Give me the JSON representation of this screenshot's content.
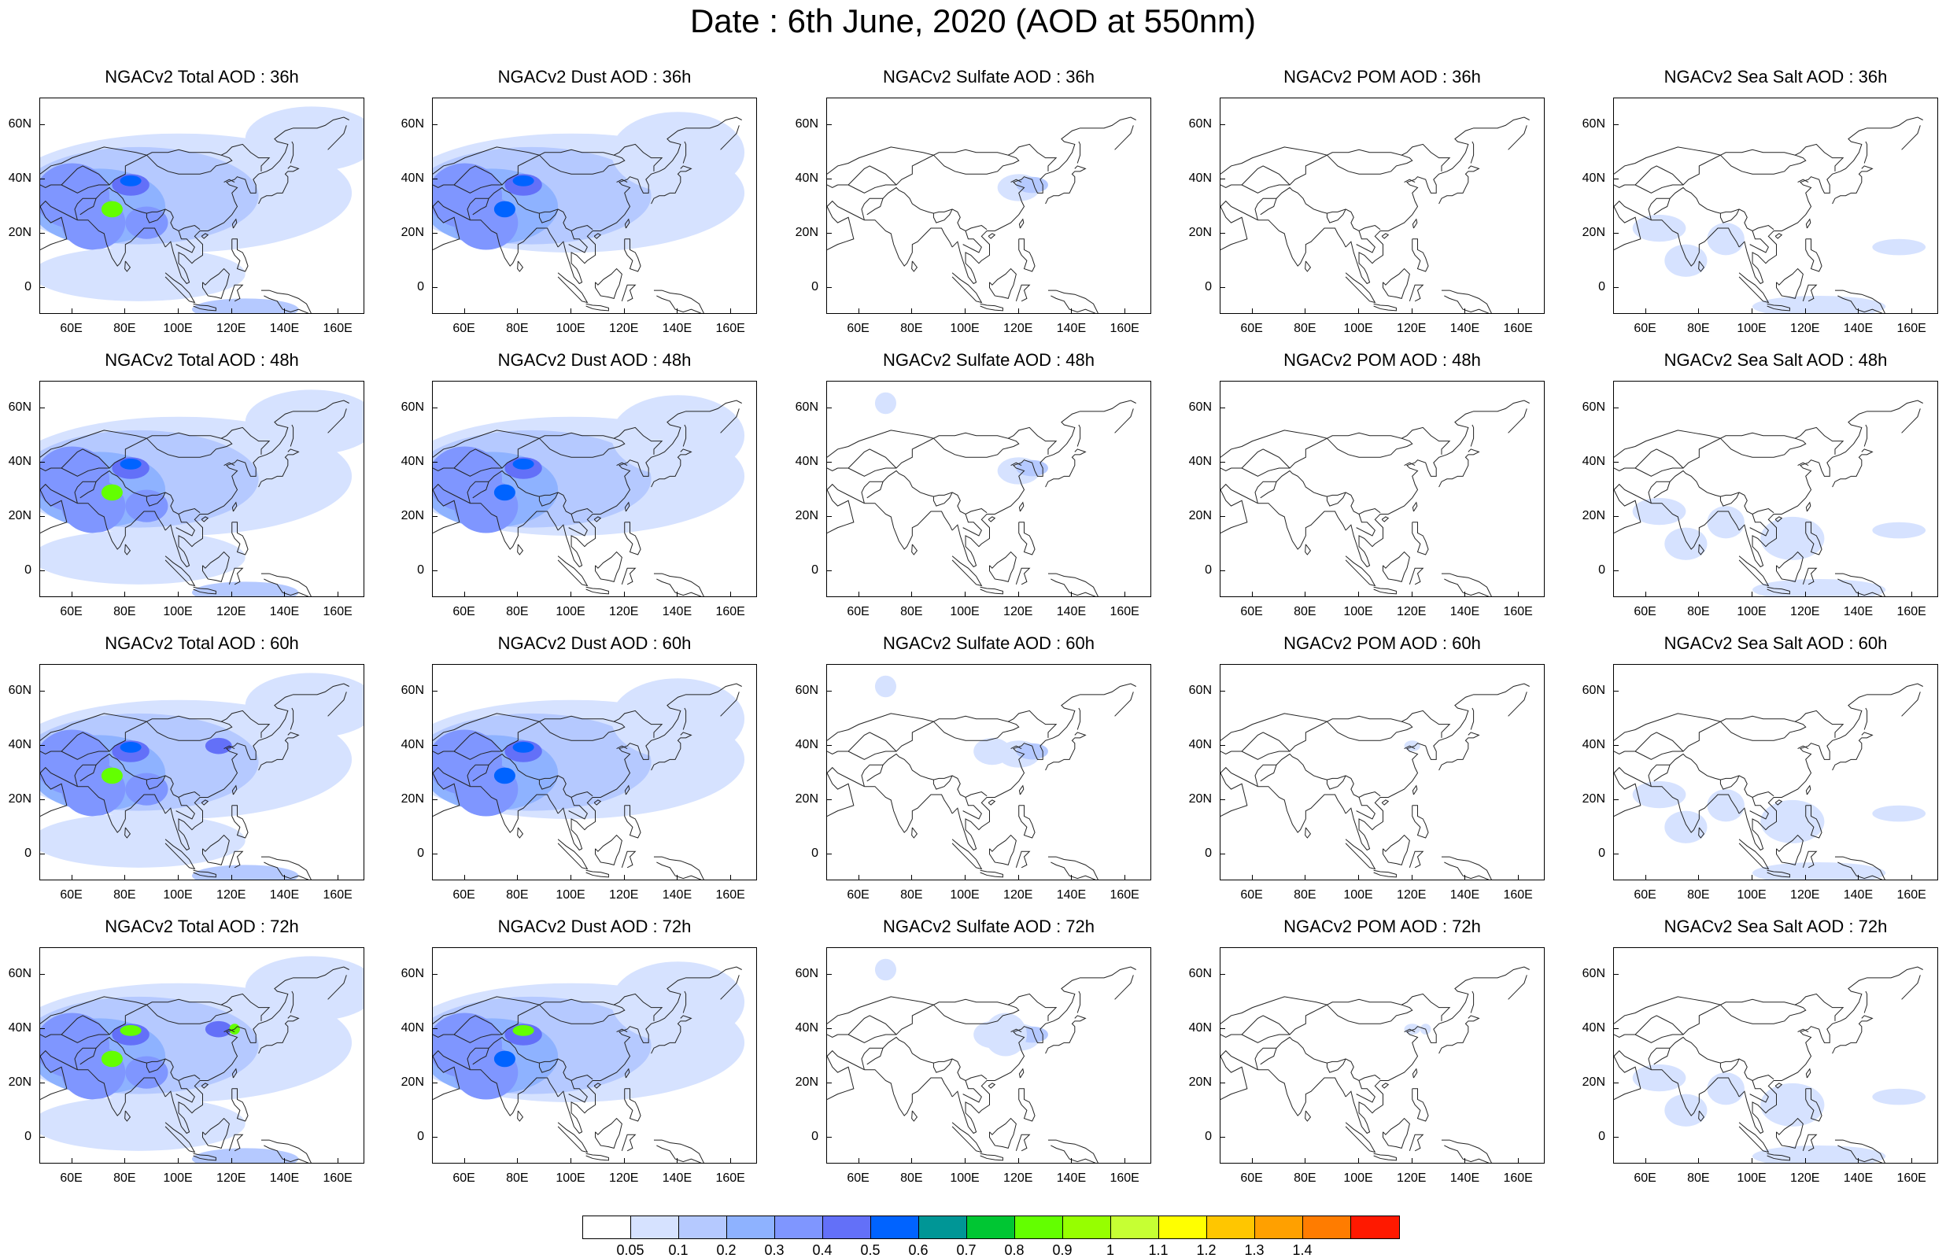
{
  "title": "Date : 6th June, 2020 (AOD at 550nm)",
  "panel_titles": [
    [
      "NGACv2 Total AOD : 36h",
      "NGACv2 Dust AOD : 36h",
      "NGACv2 Sulfate AOD : 36h",
      "NGACv2 POM AOD : 36h",
      "NGACv2 Sea Salt AOD : 36h"
    ],
    [
      "NGACv2 Total AOD : 48h",
      "NGACv2 Dust AOD : 48h",
      "NGACv2 Sulfate AOD : 48h",
      "NGACv2 POM AOD : 48h",
      "NGACv2 Sea Salt AOD : 48h"
    ],
    [
      "NGACv2 Total AOD : 60h",
      "NGACv2 Dust AOD : 60h",
      "NGACv2 Sulfate AOD : 60h",
      "NGACv2 POM AOD : 60h",
      "NGACv2 Sea Salt AOD : 60h"
    ],
    [
      "NGACv2 Total AOD : 72h",
      "NGACv2 Dust AOD : 72h",
      "NGACv2 Sulfate AOD : 72h",
      "NGACv2 POM AOD : 72h",
      "NGACv2 Sea Salt  AOD : 72h"
    ]
  ],
  "latitude_labels": [
    "60N",
    "40N",
    "20N",
    "0"
  ],
  "latitude_values": [
    60,
    40,
    20,
    0
  ],
  "longitude_labels": [
    "60E",
    "80E",
    "100E",
    "120E",
    "140E",
    "160E"
  ],
  "longitude_values": [
    60,
    80,
    100,
    120,
    140,
    160
  ],
  "map_extent": {
    "lon_min": 48,
    "lon_max": 170,
    "lat_min": -10,
    "lat_max": 70
  },
  "colorbar": {
    "labels": [
      "0.05",
      "0.1",
      "0.2",
      "0.3",
      "0.4",
      "0.5",
      "0.6",
      "0.7",
      "0.8",
      "0.9",
      "1",
      "1.1",
      "1.2",
      "1.3",
      "1.4"
    ],
    "colors": [
      "#ffffff",
      "#d6e2ff",
      "#b5c9ff",
      "#8eb2ff",
      "#7f96ff",
      "#6370f8",
      "#0063ff",
      "#009696",
      "#00c633",
      "#63ff00",
      "#96ff00",
      "#c6ff33",
      "#ffff00",
      "#ffc600",
      "#ffa000",
      "#ff7c00",
      "#ff1900"
    ]
  }
}
